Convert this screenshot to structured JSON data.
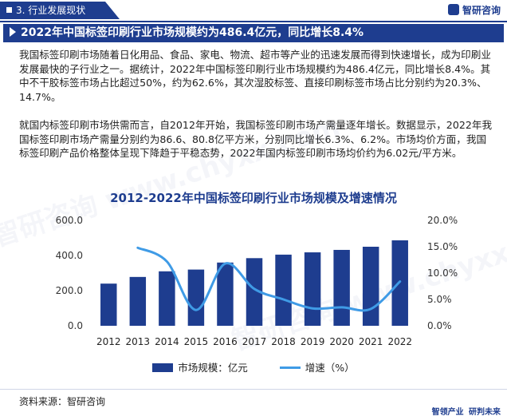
{
  "header": {
    "section": "3. 行业发展现状",
    "logo": "智研咨询"
  },
  "title": "2022年中国标签印刷行业市场规模约为486.4亿元，同比增长8.4%",
  "paragraphs": [
    "我国标签印刷市场随着日化用品、食品、家电、物流、超市等产业的迅速发展而得到快速增长，成为印刷业发展最快的子行业之一。据统计，2022年中国标签印刷行业市场规模约为486.4亿元，同比增长8.4%。其中不干胶标签市场占比超过50%，约为62.6%，其次湿胶标签、直接印刷标签市场占比分别约为20.3%、14.7%。",
    "就国内标签印刷市场供需而言，自2012年开始，我国标签印刷市场产需量逐年增长。数据显示，2022年我国标签印刷市场产需量分别约为86.6、80.8亿平方米，分别同比增长6.3%、6.2%。市场均价方面，我国标签印刷产品价格整体呈现下降趋于平稳态势，2022年国内标签印刷市场均价约为6.02元/平方米。"
  ],
  "chart_data": {
    "type": "bar",
    "title": "2012-2022年中国标签印刷行业市场规模及增速情况",
    "categories": [
      "2012",
      "2013",
      "2014",
      "2015",
      "2016",
      "2017",
      "2018",
      "2019",
      "2020",
      "2021",
      "2022"
    ],
    "series": [
      {
        "name": "市场规模：亿元",
        "type": "bar",
        "axis": "left",
        "color": "#1e3d8f",
        "values": [
          240,
          278,
          310,
          320,
          360,
          385,
          405,
          418,
          432,
          450,
          486.4
        ]
      },
      {
        "name": "增速（%）",
        "type": "line",
        "axis": "right",
        "color": "#3f9be6",
        "values": [
          null,
          14.8,
          12.2,
          3.0,
          11.8,
          7.0,
          5.0,
          3.3,
          3.5,
          3.2,
          8.4
        ]
      }
    ],
    "y_left": {
      "min": 0,
      "max": 600,
      "ticks": [
        "0.0",
        "200.0",
        "400.0",
        "600.0"
      ]
    },
    "y_right": {
      "min": 0,
      "max": 20,
      "ticks": [
        "0.0%",
        "5.0%",
        "10.0%",
        "15.0%",
        "20.0%"
      ]
    },
    "legend_position": "bottom",
    "grid": false
  },
  "source": "资料来源：智研咨询",
  "footer": {
    "left": "智领产业",
    "right": "研判未来"
  },
  "watermark": "智研咨询 www.chyxx.com"
}
